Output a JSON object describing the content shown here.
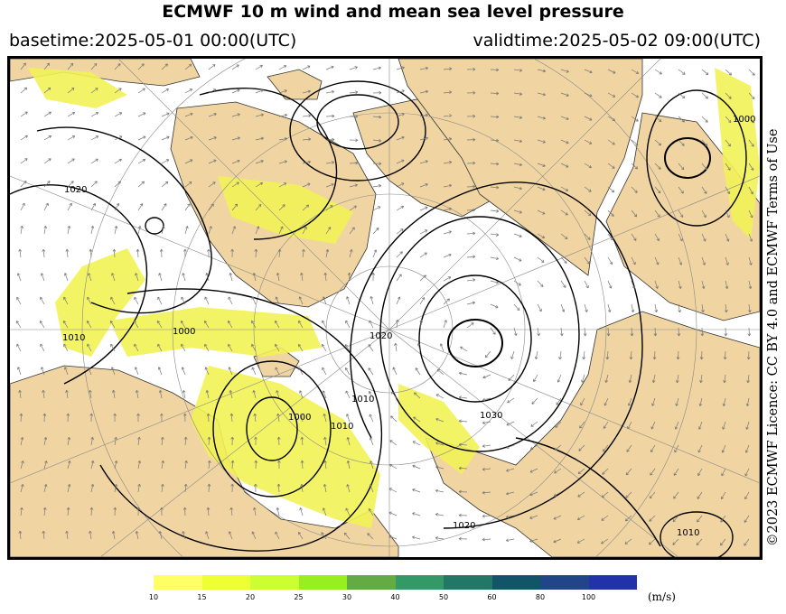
{
  "title": "ECMWF 10 m wind and mean sea level pressure",
  "basetime": "basetime:2025-05-01 00:00(UTC)",
  "validtime": "validtime:2025-05-02 09:00(UTC)",
  "credit": "©2023 ECMWF Licence: CC BY 4.0 and ECMWF Terms of Use",
  "isobar_labels": [
    "1020",
    "1000",
    "1010",
    "1000",
    "1000",
    "1010",
    "1020",
    "1010",
    "1030",
    "1020",
    "1010"
  ],
  "colorbar": {
    "unit": "(m/s)",
    "ticks": [
      "10",
      "15",
      "20",
      "25",
      "30",
      "40",
      "50",
      "60",
      "80",
      "100"
    ],
    "colors": [
      "#ffff66",
      "#eeff33",
      "#ccff33",
      "#99ee22",
      "#66aa44",
      "#339966",
      "#227766",
      "#115566",
      "#224488",
      "#2233aa"
    ]
  },
  "colors": {
    "land": "#f0d5a2",
    "wind_highlight": "#f2f256",
    "isobar": "#000000",
    "grid": "#888888"
  }
}
